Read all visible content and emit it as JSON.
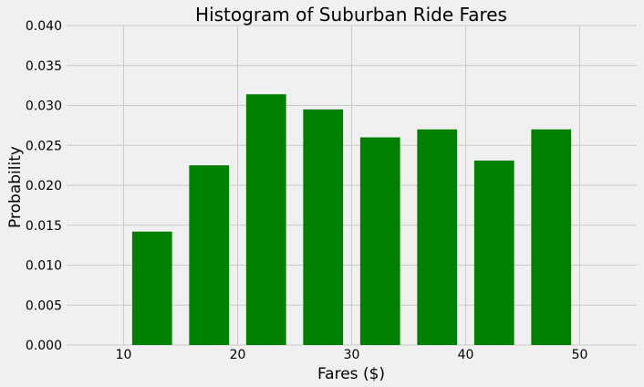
{
  "chart_data": {
    "type": "bar",
    "title": "Histogram of Suburban Ride Fares",
    "xlabel": "Fares ($)",
    "ylabel": "Probability",
    "x_centers": [
      12.5,
      17.5,
      22.5,
      27.5,
      32.5,
      37.5,
      42.5,
      47.5
    ],
    "bin_width": 5,
    "values": [
      0.0142,
      0.0225,
      0.0314,
      0.0295,
      0.026,
      0.027,
      0.0231,
      0.027
    ],
    "xlim": [
      5,
      55
    ],
    "ylim": [
      0,
      0.04
    ],
    "xticks": [
      10,
      20,
      30,
      40,
      50
    ],
    "yticks": [
      "0.000",
      "0.005",
      "0.010",
      "0.015",
      "0.020",
      "0.025",
      "0.030",
      "0.035",
      "0.040"
    ],
    "bar_color": "#008000",
    "background": "#f0f0f0",
    "grid": true
  }
}
